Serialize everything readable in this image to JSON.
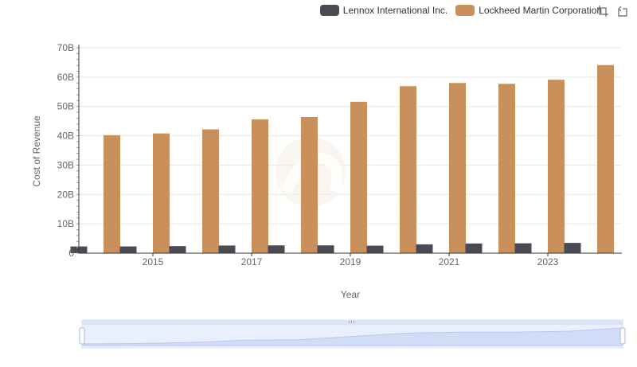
{
  "chart_data": {
    "type": "bar",
    "title": "",
    "xlabel": "Year",
    "ylabel": "Cost of Revenue",
    "categories": [
      "2014",
      "2015",
      "2016",
      "2017",
      "2018",
      "2019",
      "2020",
      "2021",
      "2022",
      "2023",
      "2024"
    ],
    "x_tick_labels": [
      "2015",
      "2017",
      "2019",
      "2021",
      "2023"
    ],
    "y_tick_labels": [
      "0",
      "10B",
      "20B",
      "30B",
      "40B",
      "50B",
      "60B",
      "70B"
    ],
    "ylim": [
      0,
      70000000000
    ],
    "grid": true,
    "legend_position": "top-right",
    "series": [
      {
        "name": "Lennox International Inc.",
        "color": "#4a4a55",
        "values": [
          2280000000,
          2290000000,
          2400000000,
          2600000000,
          2650000000,
          2650000000,
          2550000000,
          3000000000,
          3300000000,
          3350000000,
          3500000000
        ]
      },
      {
        "name": "Lockheed Martin Corporation",
        "color": "#c9905c",
        "values": [
          40200000000,
          40800000000,
          42200000000,
          45600000000,
          46400000000,
          51600000000,
          56900000000,
          58000000000,
          57700000000,
          59100000000,
          64100000000
        ]
      }
    ]
  },
  "legend": {
    "items": [
      {
        "label": "Lennox International Inc.",
        "color": "#4a4a55"
      },
      {
        "label": "Lockheed Martin Corporation",
        "color": "#c9905c"
      }
    ]
  },
  "toolbox": {
    "zoom_icon": "zoom-icon",
    "restore_icon": "restore-icon"
  },
  "datazoom": {
    "handle_color": "#aab7d9",
    "fill_color": "#dbe4f7"
  }
}
